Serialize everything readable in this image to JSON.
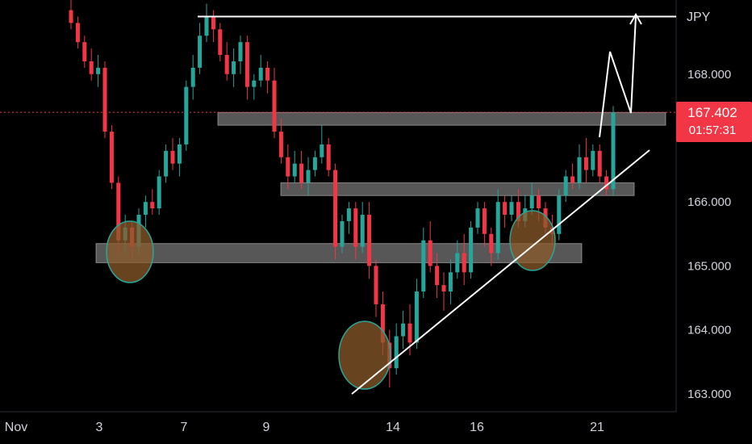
{
  "chart_data": {
    "type": "candlestick",
    "currency": "JPY",
    "y_ticks": [
      "168.000",
      "166.000",
      "165.000",
      "164.000",
      "163.000"
    ],
    "y_tick_values": [
      168.0,
      166.0,
      165.0,
      164.0,
      163.0
    ],
    "ylim": [
      162.9,
      169.0
    ],
    "x_ticks": [
      "Nov",
      "3",
      "7",
      "9",
      "14",
      "16",
      "21"
    ],
    "current_price": "167.402",
    "current_price_value": 167.402,
    "countdown": "01:57:31",
    "colors": {
      "up": "#26a69a",
      "down": "#f23645",
      "background": "#000000",
      "zones": "#9e9e9e",
      "lines": "#ffffff",
      "circles": "#8b5a2b",
      "circle_border": "#26a69a"
    },
    "support_resistance_zones": [
      {
        "low": 165.05,
        "high": 165.35
      },
      {
        "low": 166.1,
        "high": 166.3
      },
      {
        "low": 167.2,
        "high": 167.4
      }
    ],
    "resistance_line": 168.9,
    "grid": false,
    "candles": [
      [
        169.0,
        169.2,
        168.7,
        168.8
      ],
      [
        168.8,
        168.9,
        168.4,
        168.5
      ],
      [
        168.5,
        168.6,
        168.1,
        168.2
      ],
      [
        168.2,
        168.4,
        167.9,
        168.0
      ],
      [
        168.0,
        168.3,
        167.8,
        168.1
      ],
      [
        168.1,
        168.2,
        167.0,
        167.1
      ],
      [
        167.1,
        167.2,
        166.2,
        166.3
      ],
      [
        166.3,
        166.4,
        165.2,
        165.4
      ],
      [
        165.4,
        165.8,
        165.2,
        165.6
      ],
      [
        165.6,
        165.7,
        165.1,
        165.3
      ],
      [
        165.3,
        165.9,
        165.2,
        165.8
      ],
      [
        165.8,
        166.1,
        165.6,
        166.0
      ],
      [
        166.0,
        166.2,
        165.8,
        165.9
      ],
      [
        165.9,
        166.5,
        165.8,
        166.4
      ],
      [
        166.4,
        166.9,
        166.3,
        166.8
      ],
      [
        166.8,
        167.0,
        166.5,
        166.6
      ],
      [
        166.6,
        167.0,
        166.4,
        166.9
      ],
      [
        166.9,
        167.9,
        166.8,
        167.8
      ],
      [
        167.8,
        168.3,
        167.6,
        168.1
      ],
      [
        168.1,
        168.8,
        168.0,
        168.6
      ],
      [
        168.6,
        169.1,
        168.5,
        168.9
      ],
      [
        168.9,
        169.0,
        168.5,
        168.7
      ],
      [
        168.7,
        168.8,
        168.2,
        168.3
      ],
      [
        168.3,
        168.5,
        167.9,
        168.0
      ],
      [
        168.0,
        168.4,
        167.8,
        168.2
      ],
      [
        168.2,
        168.6,
        168.0,
        168.5
      ],
      [
        168.5,
        168.6,
        167.6,
        167.8
      ],
      [
        167.8,
        168.0,
        167.6,
        167.9
      ],
      [
        167.9,
        168.3,
        167.8,
        168.1
      ],
      [
        168.1,
        168.2,
        167.7,
        167.9
      ],
      [
        167.9,
        168.1,
        167.0,
        167.1
      ],
      [
        167.1,
        167.3,
        166.6,
        166.7
      ],
      [
        166.7,
        166.9,
        166.2,
        166.4
      ],
      [
        166.4,
        166.8,
        166.3,
        166.6
      ],
      [
        166.6,
        166.8,
        166.2,
        166.3
      ],
      [
        166.3,
        166.7,
        166.1,
        166.5
      ],
      [
        166.5,
        166.8,
        166.4,
        166.7
      ],
      [
        166.7,
        167.2,
        166.6,
        166.9
      ],
      [
        166.9,
        167.0,
        166.4,
        166.5
      ],
      [
        166.5,
        166.6,
        165.1,
        165.3
      ],
      [
        165.3,
        165.8,
        165.2,
        165.7
      ],
      [
        165.7,
        166.0,
        165.5,
        165.9
      ],
      [
        165.9,
        166.0,
        165.1,
        165.3
      ],
      [
        165.3,
        166.0,
        165.2,
        165.8
      ],
      [
        165.8,
        166.0,
        164.8,
        165.0
      ],
      [
        165.0,
        165.1,
        164.2,
        164.4
      ],
      [
        164.4,
        164.6,
        163.6,
        163.8
      ],
      [
        163.8,
        164.0,
        163.1,
        163.4
      ],
      [
        163.4,
        164.1,
        163.3,
        163.9
      ],
      [
        163.9,
        164.3,
        163.7,
        164.1
      ],
      [
        164.1,
        164.4,
        163.6,
        163.8
      ],
      [
        163.8,
        164.8,
        163.7,
        164.6
      ],
      [
        164.6,
        165.6,
        164.5,
        165.4
      ],
      [
        165.4,
        165.7,
        164.9,
        165.0
      ],
      [
        165.0,
        165.2,
        164.5,
        164.7
      ],
      [
        164.7,
        164.9,
        164.3,
        164.6
      ],
      [
        164.6,
        165.1,
        164.4,
        164.9
      ],
      [
        164.9,
        165.4,
        164.8,
        165.2
      ],
      [
        165.2,
        165.5,
        164.7,
        164.9
      ],
      [
        164.9,
        165.7,
        164.8,
        165.6
      ],
      [
        165.6,
        166.0,
        165.5,
        165.9
      ],
      [
        165.9,
        166.0,
        165.3,
        165.5
      ],
      [
        165.5,
        165.6,
        165.0,
        165.2
      ],
      [
        165.2,
        166.2,
        165.1,
        166.0
      ],
      [
        166.0,
        166.1,
        165.6,
        165.8
      ],
      [
        165.8,
        166.1,
        165.7,
        166.0
      ],
      [
        166.0,
        166.2,
        165.6,
        165.7
      ],
      [
        165.7,
        166.1,
        165.6,
        165.9
      ],
      [
        165.9,
        166.3,
        165.8,
        166.1
      ],
      [
        166.1,
        166.2,
        165.7,
        165.9
      ],
      [
        165.9,
        166.0,
        165.5,
        165.6
      ],
      [
        165.6,
        165.8,
        165.3,
        165.5
      ],
      [
        165.5,
        166.2,
        165.4,
        166.1
      ],
      [
        166.1,
        166.5,
        166.0,
        166.4
      ],
      [
        166.4,
        166.6,
        166.2,
        166.3
      ],
      [
        166.3,
        166.9,
        166.2,
        166.7
      ],
      [
        166.7,
        167.0,
        166.3,
        166.5
      ],
      [
        166.5,
        166.9,
        166.4,
        166.8
      ],
      [
        166.8,
        166.9,
        166.3,
        166.4
      ],
      [
        166.4,
        166.5,
        166.1,
        166.2
      ],
      [
        166.2,
        167.5,
        166.1,
        167.4
      ]
    ]
  }
}
